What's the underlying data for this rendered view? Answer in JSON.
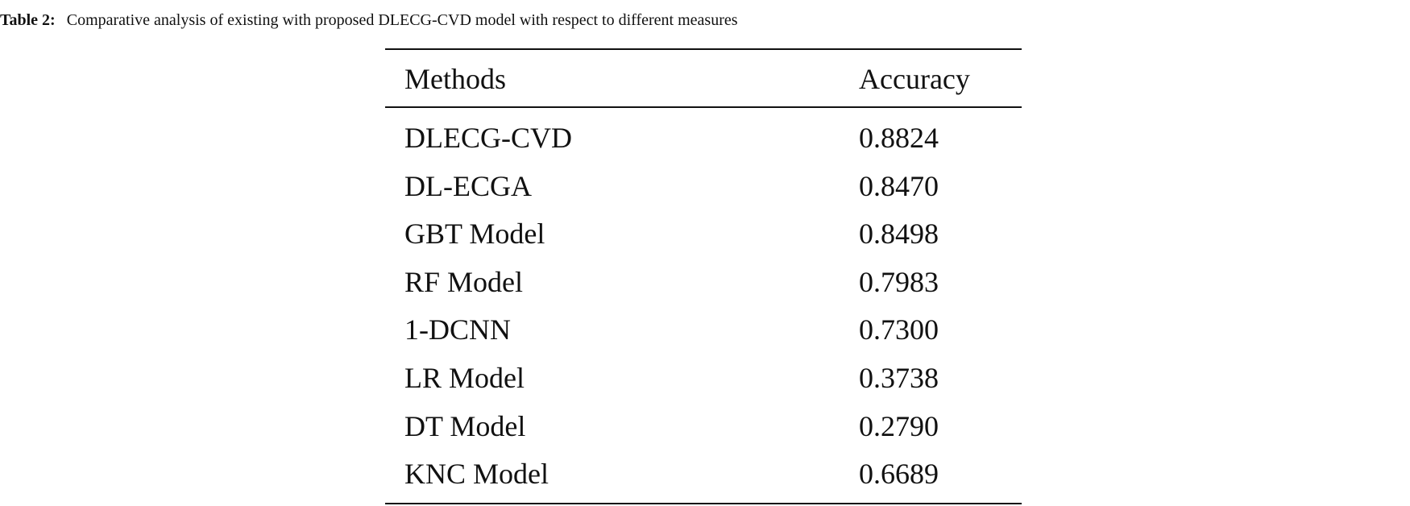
{
  "caption": {
    "label": "Table 2:",
    "text": "Comparative analysis of existing with proposed DLECG-CVD model with respect to different measures"
  },
  "table": {
    "header": [
      "Methods",
      "Accuracy"
    ],
    "rows": [
      [
        "DLECG-CVD",
        "0.8824"
      ],
      [
        "DL-ECGA",
        "0.8470"
      ],
      [
        "GBT Model",
        "0.8498"
      ],
      [
        "RF Model",
        "0.7983"
      ],
      [
        "1-DCNN",
        "0.7300"
      ],
      [
        "LR Model",
        "0.3738"
      ],
      [
        "DT Model",
        "0.2790"
      ],
      [
        "KNC Model",
        "0.6689"
      ]
    ]
  }
}
